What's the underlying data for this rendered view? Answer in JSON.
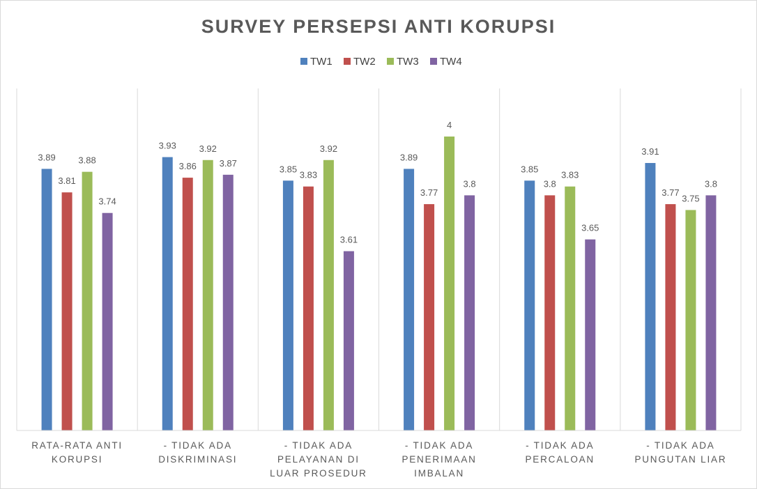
{
  "chart_data": {
    "type": "bar",
    "title": "SURVEY PERSEPSI ANTI KORUPSI",
    "xlabel": "",
    "ylabel": "",
    "ylim": [
      3.0,
      4.0
    ],
    "grid": false,
    "legend_position": "top",
    "categories": [
      [
        "RATA-RATA ANTI",
        "KORUPSI"
      ],
      [
        "- TIDAK ADA",
        "DISKRIMINASI"
      ],
      [
        "- TIDAK ADA",
        "PELAYANAN DI",
        "LUAR PROSEDUR"
      ],
      [
        "- TIDAK ADA",
        "PENERIMAAN",
        "IMBALAN"
      ],
      [
        "- TIDAK ADA",
        "PERCALOAN"
      ],
      [
        "- TIDAK ADA",
        "PUNGUTAN LIAR"
      ]
    ],
    "series": [
      {
        "name": "TW1",
        "color": "#4f81bd",
        "values": [
          3.89,
          3.93,
          3.85,
          3.89,
          3.85,
          3.91
        ]
      },
      {
        "name": "TW2",
        "color": "#c0504d",
        "values": [
          3.81,
          3.86,
          3.83,
          3.77,
          3.8,
          3.77
        ]
      },
      {
        "name": "TW3",
        "color": "#9bbb59",
        "values": [
          3.88,
          3.92,
          3.92,
          4,
          3.83,
          3.75
        ]
      },
      {
        "name": "TW4",
        "color": "#8064a2",
        "values": [
          3.74,
          3.87,
          3.61,
          3.8,
          3.65,
          3.8
        ]
      }
    ]
  }
}
